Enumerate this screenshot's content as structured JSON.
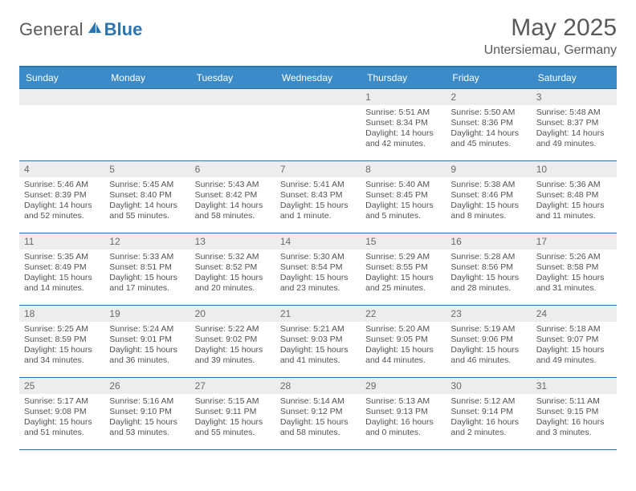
{
  "brand": {
    "text1": "General",
    "text2": "Blue"
  },
  "title": "May 2025",
  "location": "Untersiemau, Germany",
  "colors": {
    "accent": "#3b8bc9",
    "rule": "#2b75b3",
    "daybar": "#ededed",
    "text": "#525252",
    "title": "#595959"
  },
  "days_of_week": [
    "Sunday",
    "Monday",
    "Tuesday",
    "Wednesday",
    "Thursday",
    "Friday",
    "Saturday"
  ],
  "weeks": [
    [
      {
        "blank": true
      },
      {
        "blank": true
      },
      {
        "blank": true
      },
      {
        "blank": true
      },
      {
        "n": "1",
        "sunrise": "Sunrise: 5:51 AM",
        "sunset": "Sunset: 8:34 PM",
        "daylight1": "Daylight: 14 hours",
        "daylight2": "and 42 minutes."
      },
      {
        "n": "2",
        "sunrise": "Sunrise: 5:50 AM",
        "sunset": "Sunset: 8:36 PM",
        "daylight1": "Daylight: 14 hours",
        "daylight2": "and 45 minutes."
      },
      {
        "n": "3",
        "sunrise": "Sunrise: 5:48 AM",
        "sunset": "Sunset: 8:37 PM",
        "daylight1": "Daylight: 14 hours",
        "daylight2": "and 49 minutes."
      }
    ],
    [
      {
        "n": "4",
        "sunrise": "Sunrise: 5:46 AM",
        "sunset": "Sunset: 8:39 PM",
        "daylight1": "Daylight: 14 hours",
        "daylight2": "and 52 minutes."
      },
      {
        "n": "5",
        "sunrise": "Sunrise: 5:45 AM",
        "sunset": "Sunset: 8:40 PM",
        "daylight1": "Daylight: 14 hours",
        "daylight2": "and 55 minutes."
      },
      {
        "n": "6",
        "sunrise": "Sunrise: 5:43 AM",
        "sunset": "Sunset: 8:42 PM",
        "daylight1": "Daylight: 14 hours",
        "daylight2": "and 58 minutes."
      },
      {
        "n": "7",
        "sunrise": "Sunrise: 5:41 AM",
        "sunset": "Sunset: 8:43 PM",
        "daylight1": "Daylight: 15 hours",
        "daylight2": "and 1 minute."
      },
      {
        "n": "8",
        "sunrise": "Sunrise: 5:40 AM",
        "sunset": "Sunset: 8:45 PM",
        "daylight1": "Daylight: 15 hours",
        "daylight2": "and 5 minutes."
      },
      {
        "n": "9",
        "sunrise": "Sunrise: 5:38 AM",
        "sunset": "Sunset: 8:46 PM",
        "daylight1": "Daylight: 15 hours",
        "daylight2": "and 8 minutes."
      },
      {
        "n": "10",
        "sunrise": "Sunrise: 5:36 AM",
        "sunset": "Sunset: 8:48 PM",
        "daylight1": "Daylight: 15 hours",
        "daylight2": "and 11 minutes."
      }
    ],
    [
      {
        "n": "11",
        "sunrise": "Sunrise: 5:35 AM",
        "sunset": "Sunset: 8:49 PM",
        "daylight1": "Daylight: 15 hours",
        "daylight2": "and 14 minutes."
      },
      {
        "n": "12",
        "sunrise": "Sunrise: 5:33 AM",
        "sunset": "Sunset: 8:51 PM",
        "daylight1": "Daylight: 15 hours",
        "daylight2": "and 17 minutes."
      },
      {
        "n": "13",
        "sunrise": "Sunrise: 5:32 AM",
        "sunset": "Sunset: 8:52 PM",
        "daylight1": "Daylight: 15 hours",
        "daylight2": "and 20 minutes."
      },
      {
        "n": "14",
        "sunrise": "Sunrise: 5:30 AM",
        "sunset": "Sunset: 8:54 PM",
        "daylight1": "Daylight: 15 hours",
        "daylight2": "and 23 minutes."
      },
      {
        "n": "15",
        "sunrise": "Sunrise: 5:29 AM",
        "sunset": "Sunset: 8:55 PM",
        "daylight1": "Daylight: 15 hours",
        "daylight2": "and 25 minutes."
      },
      {
        "n": "16",
        "sunrise": "Sunrise: 5:28 AM",
        "sunset": "Sunset: 8:56 PM",
        "daylight1": "Daylight: 15 hours",
        "daylight2": "and 28 minutes."
      },
      {
        "n": "17",
        "sunrise": "Sunrise: 5:26 AM",
        "sunset": "Sunset: 8:58 PM",
        "daylight1": "Daylight: 15 hours",
        "daylight2": "and 31 minutes."
      }
    ],
    [
      {
        "n": "18",
        "sunrise": "Sunrise: 5:25 AM",
        "sunset": "Sunset: 8:59 PM",
        "daylight1": "Daylight: 15 hours",
        "daylight2": "and 34 minutes."
      },
      {
        "n": "19",
        "sunrise": "Sunrise: 5:24 AM",
        "sunset": "Sunset: 9:01 PM",
        "daylight1": "Daylight: 15 hours",
        "daylight2": "and 36 minutes."
      },
      {
        "n": "20",
        "sunrise": "Sunrise: 5:22 AM",
        "sunset": "Sunset: 9:02 PM",
        "daylight1": "Daylight: 15 hours",
        "daylight2": "and 39 minutes."
      },
      {
        "n": "21",
        "sunrise": "Sunrise: 5:21 AM",
        "sunset": "Sunset: 9:03 PM",
        "daylight1": "Daylight: 15 hours",
        "daylight2": "and 41 minutes."
      },
      {
        "n": "22",
        "sunrise": "Sunrise: 5:20 AM",
        "sunset": "Sunset: 9:05 PM",
        "daylight1": "Daylight: 15 hours",
        "daylight2": "and 44 minutes."
      },
      {
        "n": "23",
        "sunrise": "Sunrise: 5:19 AM",
        "sunset": "Sunset: 9:06 PM",
        "daylight1": "Daylight: 15 hours",
        "daylight2": "and 46 minutes."
      },
      {
        "n": "24",
        "sunrise": "Sunrise: 5:18 AM",
        "sunset": "Sunset: 9:07 PM",
        "daylight1": "Daylight: 15 hours",
        "daylight2": "and 49 minutes."
      }
    ],
    [
      {
        "n": "25",
        "sunrise": "Sunrise: 5:17 AM",
        "sunset": "Sunset: 9:08 PM",
        "daylight1": "Daylight: 15 hours",
        "daylight2": "and 51 minutes."
      },
      {
        "n": "26",
        "sunrise": "Sunrise: 5:16 AM",
        "sunset": "Sunset: 9:10 PM",
        "daylight1": "Daylight: 15 hours",
        "daylight2": "and 53 minutes."
      },
      {
        "n": "27",
        "sunrise": "Sunrise: 5:15 AM",
        "sunset": "Sunset: 9:11 PM",
        "daylight1": "Daylight: 15 hours",
        "daylight2": "and 55 minutes."
      },
      {
        "n": "28",
        "sunrise": "Sunrise: 5:14 AM",
        "sunset": "Sunset: 9:12 PM",
        "daylight1": "Daylight: 15 hours",
        "daylight2": "and 58 minutes."
      },
      {
        "n": "29",
        "sunrise": "Sunrise: 5:13 AM",
        "sunset": "Sunset: 9:13 PM",
        "daylight1": "Daylight: 16 hours",
        "daylight2": "and 0 minutes."
      },
      {
        "n": "30",
        "sunrise": "Sunrise: 5:12 AM",
        "sunset": "Sunset: 9:14 PM",
        "daylight1": "Daylight: 16 hours",
        "daylight2": "and 2 minutes."
      },
      {
        "n": "31",
        "sunrise": "Sunrise: 5:11 AM",
        "sunset": "Sunset: 9:15 PM",
        "daylight1": "Daylight: 16 hours",
        "daylight2": "and 3 minutes."
      }
    ]
  ]
}
